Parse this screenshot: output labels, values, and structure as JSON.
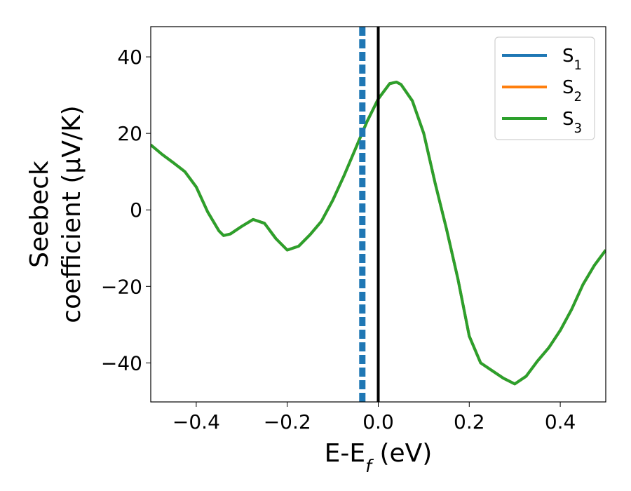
{
  "chart_data": {
    "type": "line",
    "xlabel": "E-E_f (eV)",
    "ylabel": [
      "Seebeck",
      "coefficient  (μV/K)"
    ],
    "x": [
      -0.5,
      -0.475,
      -0.45,
      -0.425,
      -0.4,
      -0.375,
      -0.35,
      -0.34,
      -0.325,
      -0.3,
      -0.275,
      -0.25,
      -0.225,
      -0.2,
      -0.175,
      -0.15,
      -0.125,
      -0.1,
      -0.075,
      -0.05,
      -0.025,
      0,
      0.025,
      0.04,
      0.05,
      0.075,
      0.1,
      0.125,
      0.15,
      0.175,
      0.2,
      0.225,
      0.25,
      0.275,
      0.3,
      0.325,
      0.35,
      0.375,
      0.4,
      0.425,
      0.45,
      0.475,
      0.5
    ],
    "series": [
      {
        "name": "S_1",
        "color": "#1f77b4",
        "values": [
          17,
          14.5,
          12.3,
          10,
          6,
          -0.5,
          -5.5,
          -6.7,
          -6.3,
          -4.3,
          -2.5,
          -3.5,
          -7.5,
          -10.5,
          -9.5,
          -6.5,
          -3,
          2.5,
          9,
          16,
          23,
          29,
          33,
          33.4,
          32.8,
          28.5,
          20,
          7,
          -5,
          -18,
          -33,
          -40,
          -42,
          -44,
          -45.5,
          -43.5,
          -39.5,
          -36,
          -31.5,
          -26,
          -19.5,
          -14.5,
          -10.5
        ]
      },
      {
        "name": "S_2",
        "color": "#ff7f0e",
        "values": [
          17,
          14.5,
          12.3,
          10,
          6,
          -0.5,
          -5.5,
          -6.7,
          -6.3,
          -4.3,
          -2.5,
          -3.5,
          -7.5,
          -10.5,
          -9.5,
          -6.5,
          -3,
          2.5,
          9,
          16,
          23,
          29,
          33,
          33.4,
          32.8,
          28.5,
          20,
          7,
          -5,
          -18,
          -33,
          -40,
          -42,
          -44,
          -45.5,
          -43.5,
          -39.5,
          -36,
          -31.5,
          -26,
          -19.5,
          -14.5,
          -10.5
        ]
      },
      {
        "name": "S_3",
        "color": "#2ca02c",
        "values": [
          17,
          14.5,
          12.3,
          10,
          6,
          -0.5,
          -5.5,
          -6.7,
          -6.3,
          -4.3,
          -2.5,
          -3.5,
          -7.5,
          -10.5,
          -9.5,
          -6.5,
          -3,
          2.5,
          9,
          16,
          23,
          29,
          33,
          33.4,
          32.8,
          28.5,
          20,
          7,
          -5,
          -18,
          -33,
          -40,
          -42,
          -44,
          -45.5,
          -43.5,
          -39.5,
          -36,
          -31.5,
          -26,
          -19.5,
          -14.5,
          -10.5
        ]
      }
    ],
    "vlines": [
      {
        "x": -0.035,
        "color": "#1f77b4",
        "style": "dashed"
      },
      {
        "x": 0,
        "color": "#000000",
        "style": "solid"
      }
    ],
    "xlim": [
      -0.5,
      0.5
    ],
    "ylim": [
      -50.2,
      47.9
    ],
    "xticks": [
      {
        "value": -0.4,
        "label": "−0.4"
      },
      {
        "value": -0.2,
        "label": "−0.2"
      },
      {
        "value": 0,
        "label": "0.0"
      },
      0.2,
      0.4
    ],
    "yticks": [
      {
        "value": -40,
        "label": "−40"
      },
      {
        "value": -20,
        "label": "−20"
      },
      0,
      20,
      40
    ],
    "legend": "upper right",
    "grid": false
  }
}
